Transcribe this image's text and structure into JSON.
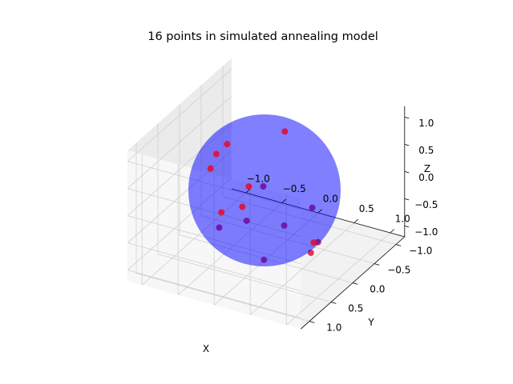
{
  "chart_data": {
    "type": "scatter",
    "title": "16 points in simulated annealing model",
    "xlabel": "X",
    "ylabel": "Y",
    "zlabel": "Z",
    "xlim": [
      -1.2,
      1.2
    ],
    "ylim": [
      -1.2,
      1.2
    ],
    "zlim": [
      -1.2,
      1.2
    ],
    "grid": true,
    "x_ticks": [
      "−1.0",
      "−0.5",
      "0.0",
      "0.5",
      "1.0"
    ],
    "y_ticks": [
      "−1.0",
      "−0.5",
      "0.0",
      "0.5",
      "1.0"
    ],
    "z_ticks": [
      "−1.0",
      "−0.5",
      "0.0",
      "0.5",
      "1.0"
    ],
    "sphere": {
      "radius": 1.0,
      "color": "#0000ff",
      "alpha": 0.5
    },
    "point_color": "#dc143c",
    "points": [
      {
        "x": -0.45,
        "y": 0.15,
        "z": 0.85
      },
      {
        "x": 0.35,
        "y": 0.65,
        "z": 0.72
      },
      {
        "x": -0.9,
        "y": -0.35,
        "z": 0.15
      },
      {
        "x": -0.25,
        "y": -0.85,
        "z": 0.45
      },
      {
        "x": 0.85,
        "y": 0.35,
        "z": 0.3
      },
      {
        "x": 0.7,
        "y": 0.75,
        "z": 0.2
      },
      {
        "x": -0.3,
        "y": -0.1,
        "z": -0.05
      },
      {
        "x": 0.15,
        "y": 0.7,
        "z": 0.05
      },
      {
        "x": -0.95,
        "y": -0.3,
        "z": -0.1
      },
      {
        "x": 0.9,
        "y": 0.3,
        "z": -0.35
      },
      {
        "x": 0.95,
        "y": 0.55,
        "z": -0.35
      },
      {
        "x": -0.35,
        "y": 0.5,
        "z": -0.4
      },
      {
        "x": -0.45,
        "y": -0.2,
        "z": -0.55
      },
      {
        "x": -0.8,
        "y": -0.3,
        "z": -0.85
      },
      {
        "x": 0.15,
        "y": 0.3,
        "z": -0.95
      },
      {
        "x": 0.6,
        "y": -0.1,
        "z": -0.75
      }
    ]
  }
}
